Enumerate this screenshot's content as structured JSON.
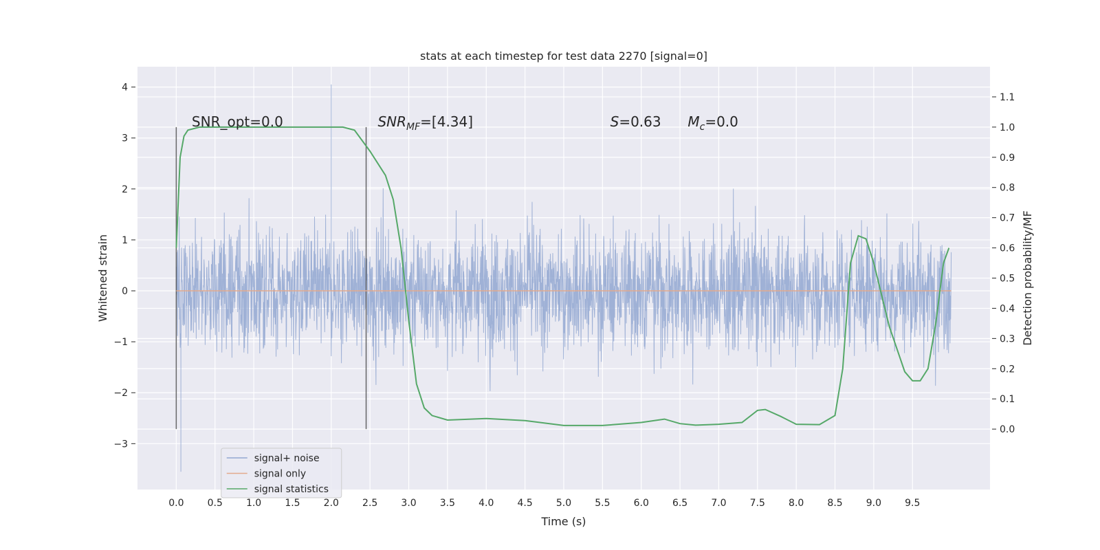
{
  "chart_data": {
    "type": "line",
    "title": "stats at each timestep for test data 2270 [signal=0]",
    "xlabel": "Time (s)",
    "ylabel_left": "Whitened strain",
    "ylabel_right": "Detection probability/MF",
    "xlim": [
      -0.5,
      10.5
    ],
    "ylim_left": [
      -3.9,
      4.4
    ],
    "ylim_right": [
      -0.2,
      1.2
    ],
    "x_ticks": [
      "0.0",
      "0.5",
      "1.0",
      "1.5",
      "2.0",
      "2.5",
      "3.0",
      "3.5",
      "4.0",
      "4.5",
      "5.0",
      "5.5",
      "6.0",
      "6.5",
      "7.0",
      "7.5",
      "8.0",
      "8.5",
      "9.0",
      "9.5"
    ],
    "y_left_ticks": [
      "−3",
      "−2",
      "−1",
      "0",
      "1",
      "2",
      "3",
      "4"
    ],
    "y_right_ticks": [
      "0.0",
      "0.1",
      "0.2",
      "0.3",
      "0.4",
      "0.5",
      "0.6",
      "0.7",
      "0.8",
      "0.9",
      "1.0",
      "1.1"
    ],
    "grid": true,
    "legend_position": "lower-left",
    "annotations": {
      "snr_opt": "SNR_opt=0.0",
      "snr_mf_italic": "SNR",
      "snr_mf_sub": "MF",
      "snr_mf_value": "=[4.34]",
      "s_italic": "S",
      "s_value": "=0.63",
      "mc_italic": "M",
      "mc_sub": "c",
      "mc_value": "=0.0"
    },
    "vertical_markers": [
      0.0,
      2.45
    ],
    "series": [
      {
        "name": "signal+ noise",
        "color": "#92a7d1",
        "axis": "left",
        "x_range": [
          0.0,
          10.0
        ],
        "typical_abs_amplitude": 1.5,
        "extreme_high": 4.05,
        "extreme_low": -3.55
      },
      {
        "name": "signal only",
        "color": "#e3a98c",
        "axis": "left",
        "x": [
          0.0,
          10.0
        ],
        "y": [
          0.0,
          0.0
        ]
      },
      {
        "name": "signal statistics",
        "color": "#55a868",
        "axis": "right",
        "x": [
          0.0,
          0.05,
          0.1,
          0.15,
          0.3,
          0.5,
          1.0,
          1.5,
          2.0,
          2.15,
          2.3,
          2.5,
          2.7,
          2.8,
          2.9,
          3.0,
          3.1,
          3.2,
          3.3,
          3.5,
          4.0,
          4.5,
          5.0,
          5.5,
          6.0,
          6.3,
          6.5,
          6.7,
          7.0,
          7.3,
          7.5,
          7.6,
          7.8,
          8.0,
          8.3,
          8.5,
          8.6,
          8.7,
          8.8,
          8.9,
          9.0,
          9.2,
          9.4,
          9.5,
          9.6,
          9.7,
          9.8,
          9.9,
          9.97
        ],
        "y": [
          0.6,
          0.9,
          0.97,
          0.99,
          1.0,
          1.0,
          1.0,
          1.0,
          1.0,
          1.0,
          0.99,
          0.92,
          0.84,
          0.76,
          0.6,
          0.36,
          0.15,
          0.07,
          0.045,
          0.03,
          0.035,
          0.028,
          0.012,
          0.012,
          0.022,
          0.033,
          0.018,
          0.013,
          0.016,
          0.022,
          0.062,
          0.065,
          0.042,
          0.016,
          0.015,
          0.045,
          0.2,
          0.55,
          0.64,
          0.63,
          0.55,
          0.34,
          0.19,
          0.16,
          0.16,
          0.2,
          0.35,
          0.55,
          0.6
        ]
      }
    ]
  }
}
